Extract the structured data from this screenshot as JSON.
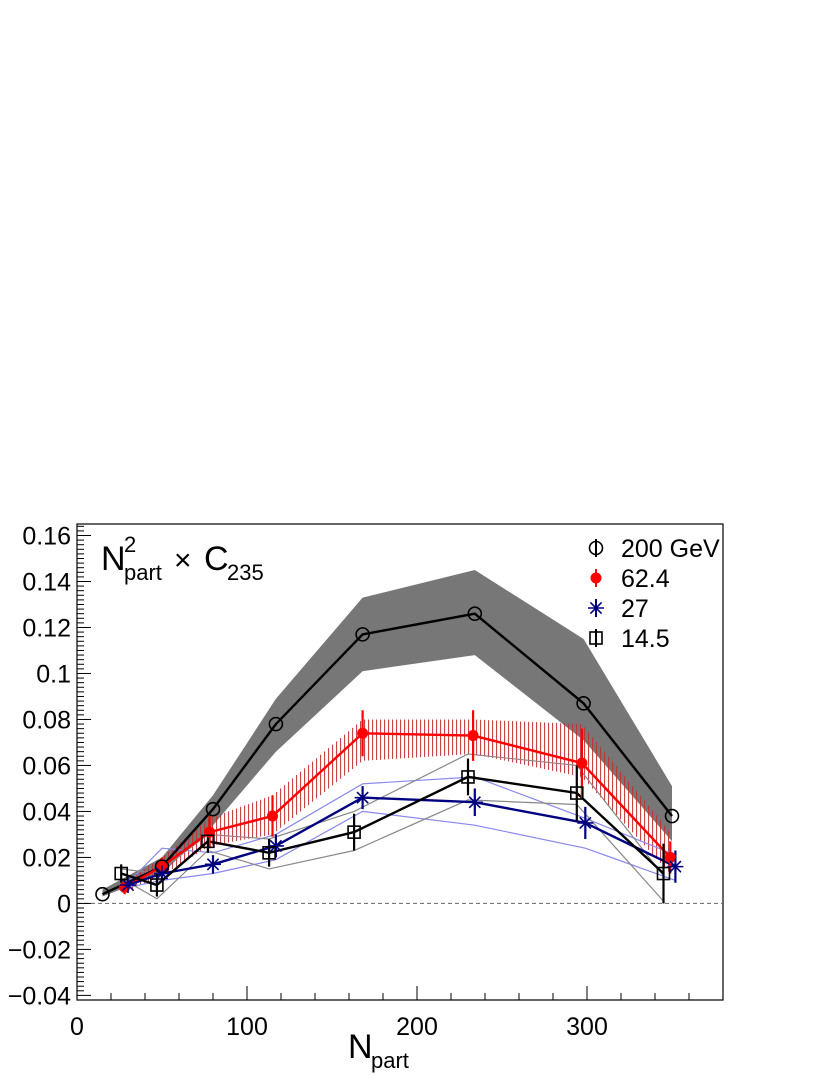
{
  "chart_data": {
    "type": "line",
    "title": "",
    "annotation": {
      "base": "N",
      "sup": "2",
      "sub": "part",
      "times": "×",
      "c": "C",
      "csub": "235"
    },
    "xlabel": {
      "base": "N",
      "sub": "part"
    },
    "ylabel": "",
    "xlim": [
      0,
      380
    ],
    "ylim": [
      -0.042,
      0.165
    ],
    "xticks": [
      0,
      100,
      200,
      300
    ],
    "xtick_labels": [
      "0",
      "100",
      "200",
      "300"
    ],
    "yticks": [
      -0.04,
      -0.02,
      0,
      0.02,
      0.04,
      0.06,
      0.08,
      0.1,
      0.12,
      0.14,
      0.16
    ],
    "ytick_labels": [
      "−0.04",
      "−0.02",
      "0",
      "0.02",
      "0.04",
      "0.06",
      "0.08",
      "0.1",
      "0.12",
      "0.14",
      "0.16"
    ],
    "zero_line": true,
    "legend_position": "top-right",
    "series": [
      {
        "name": "200 GeV",
        "color": "#000000",
        "marker": "open-circle",
        "band_style": "filled",
        "band_color": "#777777",
        "x": [
          15,
          50,
          80,
          117,
          168,
          234,
          298,
          350
        ],
        "y": [
          0.004,
          0.016,
          0.041,
          0.078,
          0.117,
          0.126,
          0.087,
          0.038
        ],
        "band_low": [
          0.003,
          0.013,
          0.034,
          0.066,
          0.101,
          0.108,
          0.071,
          0.027
        ],
        "band_high": [
          0.006,
          0.02,
          0.047,
          0.089,
          0.133,
          0.145,
          0.115,
          0.051
        ]
      },
      {
        "name": "62.4",
        "color": "#ff0000",
        "marker": "filled-circle",
        "band_style": "hatched",
        "band_color": "#c03030",
        "x": [
          28,
          50,
          78,
          115,
          168,
          233,
          297,
          349
        ],
        "y": [
          0.007,
          0.016,
          0.031,
          0.038,
          0.074,
          0.073,
          0.061,
          0.02
        ],
        "err": [
          0.003,
          0.004,
          0.007,
          0.009,
          0.01,
          0.011,
          0.015,
          0.007
        ],
        "band_low": [
          0.005,
          0.012,
          0.025,
          0.03,
          0.062,
          0.065,
          0.055,
          0.013
        ],
        "band_high": [
          0.009,
          0.02,
          0.037,
          0.047,
          0.08,
          0.08,
          0.078,
          0.031
        ]
      },
      {
        "name": "27",
        "color": "#000080",
        "marker": "star",
        "band_style": "lines",
        "band_color": "#8888ee",
        "x": [
          30,
          50,
          80,
          117,
          168,
          234,
          299,
          352
        ],
        "y": [
          0.008,
          0.013,
          0.017,
          0.025,
          0.046,
          0.044,
          0.035,
          0.016
        ],
        "err": [
          0.002,
          0.003,
          0.004,
          0.005,
          0.005,
          0.006,
          0.007,
          0.007
        ],
        "band_low": [
          0.007,
          0.01,
          0.013,
          0.019,
          0.04,
          0.034,
          0.024,
          0.01
        ],
        "band_high": [
          0.009,
          0.024,
          0.022,
          0.03,
          0.052,
          0.055,
          0.037,
          0.021
        ]
      },
      {
        "name": "14.5",
        "color": "#000000",
        "marker": "open-square",
        "band_style": "lines",
        "band_color": "#888888",
        "x": [
          26,
          47,
          77,
          113,
          163,
          230,
          294,
          345
        ],
        "y": [
          0.013,
          0.008,
          0.027,
          0.022,
          0.031,
          0.055,
          0.048,
          0.013
        ],
        "err": [
          0.004,
          0.005,
          0.005,
          0.006,
          0.008,
          0.008,
          0.012,
          0.013
        ],
        "band_low": [
          0.011,
          0.002,
          0.023,
          0.015,
          0.023,
          0.045,
          0.043,
          0.001
        ],
        "band_high": [
          0.015,
          0.013,
          0.03,
          0.028,
          0.04,
          0.065,
          0.06,
          0.012
        ]
      }
    ]
  }
}
